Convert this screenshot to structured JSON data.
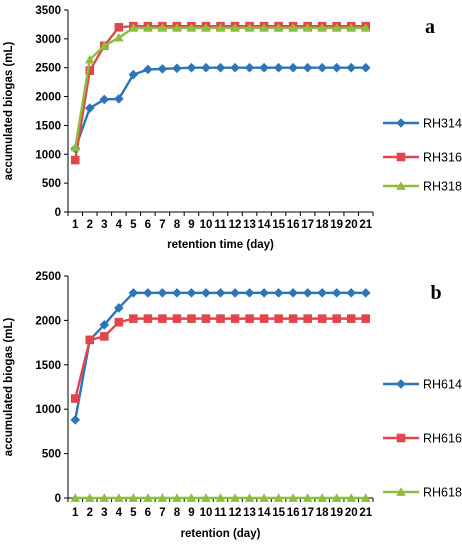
{
  "chart_data": [
    {
      "type": "line",
      "panel_label": "a",
      "xlabel": "retention time (day)",
      "ylabel": "accumulated biogas (mL)",
      "ylim": [
        0,
        3500
      ],
      "yticks": [
        0,
        500,
        1000,
        1500,
        2000,
        2500,
        3000,
        3500
      ],
      "categories": [
        "1",
        "2",
        "3",
        "4",
        "5",
        "6",
        "7",
        "8",
        "9",
        "10",
        "11",
        "12",
        "13",
        "14",
        "15",
        "16",
        "17",
        "18",
        "19",
        "20",
        "21"
      ],
      "legend_position": "right",
      "series": [
        {
          "name": "RH314",
          "color": "#2e75b6",
          "marker": "diamond",
          "values": [
            1100,
            1800,
            1950,
            1960,
            2380,
            2470,
            2480,
            2490,
            2500,
            2500,
            2500,
            2500,
            2500,
            2500,
            2500,
            2500,
            2500,
            2500,
            2500,
            2500,
            2500
          ]
        },
        {
          "name": "RH316",
          "color": "#e0474c",
          "marker": "square",
          "values": [
            900,
            2450,
            2880,
            3200,
            3220,
            3220,
            3220,
            3220,
            3220,
            3220,
            3220,
            3220,
            3220,
            3220,
            3220,
            3220,
            3220,
            3220,
            3220,
            3220,
            3220
          ]
        },
        {
          "name": "RH318",
          "color": "#8cbf3f",
          "marker": "triangle",
          "values": [
            1120,
            2640,
            2880,
            3020,
            3190,
            3190,
            3190,
            3190,
            3190,
            3190,
            3190,
            3190,
            3190,
            3190,
            3190,
            3190,
            3190,
            3190,
            3190,
            3190,
            3190
          ]
        }
      ]
    },
    {
      "type": "line",
      "panel_label": "b",
      "xlabel": "retention (day)",
      "ylabel": "accumulated biogas (mL)",
      "ylim": [
        0,
        2500
      ],
      "yticks": [
        0,
        500,
        1000,
        1500,
        2000,
        2500
      ],
      "categories": [
        "1",
        "2",
        "3",
        "4",
        "5",
        "6",
        "7",
        "8",
        "9",
        "10",
        "11",
        "12",
        "13",
        "14",
        "15",
        "16",
        "17",
        "18",
        "19",
        "20",
        "21"
      ],
      "legend_position": "right",
      "series": [
        {
          "name": "RH614",
          "color": "#2e75b6",
          "marker": "diamond",
          "values": [
            880,
            1780,
            1950,
            2140,
            2310,
            2310,
            2310,
            2310,
            2310,
            2310,
            2310,
            2310,
            2310,
            2310,
            2310,
            2310,
            2310,
            2310,
            2310,
            2310,
            2310
          ]
        },
        {
          "name": "RH616",
          "color": "#e0474c",
          "marker": "square",
          "values": [
            1120,
            1780,
            1820,
            1980,
            2020,
            2020,
            2020,
            2020,
            2020,
            2020,
            2020,
            2020,
            2020,
            2020,
            2020,
            2020,
            2020,
            2020,
            2020,
            2020,
            2020
          ]
        },
        {
          "name": "RH618",
          "color": "#8cbf3f",
          "marker": "triangle",
          "values": [
            0,
            0,
            0,
            0,
            0,
            0,
            0,
            0,
            0,
            0,
            0,
            0,
            0,
            0,
            0,
            0,
            0,
            0,
            0,
            0,
            0
          ]
        }
      ]
    }
  ]
}
